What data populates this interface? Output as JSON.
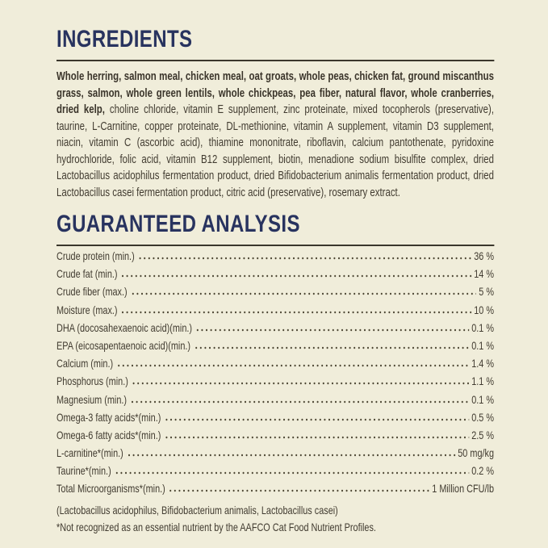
{
  "page": {
    "background_color": "#f0edda",
    "heading_color": "#28335f",
    "body_text_color": "#413b30",
    "rule_color": "#3b372c"
  },
  "ingredients": {
    "heading": "INGREDIENTS",
    "main_ingredients_bold": "Whole herring, salmon meal, chicken meal, oat groats, whole peas, chicken fat, ground miscanthus grass, salmon, whole green lentils, whole chickpeas, pea fiber, natural flavor, whole cranberries, dried kelp,",
    "supplement_ingredients": "choline chloride, vitamin E supplement, zinc proteinate, mixed tocopherols (preservative), taurine, L-Carnitine, copper proteinate, DL-methionine, vitamin A supplement, vitamin D3 supplement, niacin, vitamin C (ascorbic acid), thiamine mononitrate, riboflavin, calcium pantothenate, pyridoxine hydrochloride, folic acid, vitamin B12 supplement, biotin, menadione sodium bisulfite complex, dried Lactobacillus acidophilus fermentation product, dried Bifidobacterium animalis fermentation product, dried Lactobacillus casei fermentation product, citric acid (preservative), rosemary extract."
  },
  "analysis": {
    "heading": "GUARANTEED ANALYSIS",
    "rows": [
      {
        "label": "Crude protein (min.)",
        "value": "36 %"
      },
      {
        "label": "Crude fat (min.)",
        "value": "14 %"
      },
      {
        "label": "Crude fiber (max.)",
        "value": "5 %"
      },
      {
        "label": "Moisture (max.)",
        "value": "10 %"
      },
      {
        "label": "DHA (docosahexaenoic acid)(min.)",
        "value": "0.1 %"
      },
      {
        "label": "EPA (eicosapentaenoic acid)(min.)",
        "value": "0.1 %"
      },
      {
        "label": "Calcium (min.)",
        "value": "1.4 %"
      },
      {
        "label": "Phosphorus (min.)",
        "value": "1.1 %"
      },
      {
        "label": "Magnesium (min.)",
        "value": "0.1 %"
      },
      {
        "label": "Omega-3 fatty acids*(min.)",
        "value": "0.5 %"
      },
      {
        "label": "Omega-6 fatty acids*(min.)",
        "value": "2.5 %"
      },
      {
        "label": "L-carnitine*(min.)",
        "value": "50 mg/kg"
      },
      {
        "label": "Taurine*(min.)",
        "value": "0.2 %"
      },
      {
        "label": "Total Microorganisms*(min.)",
        "value": "1 Million CFU/lb"
      }
    ],
    "microorganisms_note": "(Lactobacillus acidophilus, Bifidobacterium animalis, Lactobacillus casei)",
    "aafco_footnote": "*Not recognized as an essential nutrient by the AAFCO Cat Food Nutrient Profiles."
  }
}
